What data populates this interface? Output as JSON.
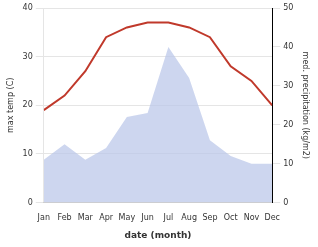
{
  "chart_data": {
    "type": "line",
    "xlabel": "date (month)",
    "ylabel": "max temp (C)",
    "y2label": "med. precipitation (kg/m2)",
    "categories": [
      "Jan",
      "Feb",
      "Mar",
      "Apr",
      "May",
      "Jun",
      "Jul",
      "Aug",
      "Sep",
      "Oct",
      "Nov",
      "Dec"
    ],
    "series": [
      {
        "type": "area",
        "axis": "y2",
        "color": "#b8c4e8",
        "values": [
          11,
          15,
          11,
          14,
          22,
          23,
          40,
          32,
          16,
          12,
          10,
          10
        ]
      },
      {
        "type": "line",
        "color": "#c0392b",
        "values": [
          19,
          22,
          27,
          34,
          36,
          37,
          37,
          36,
          34,
          28,
          25,
          20
        ]
      }
    ],
    "ylim": [
      0,
      40
    ],
    "yticks": [
      0,
      10,
      20,
      30,
      40
    ],
    "y2lim": [
      0,
      50
    ],
    "y2ticks": [
      0,
      10,
      20,
      30,
      40,
      50
    ],
    "grid": true
  }
}
